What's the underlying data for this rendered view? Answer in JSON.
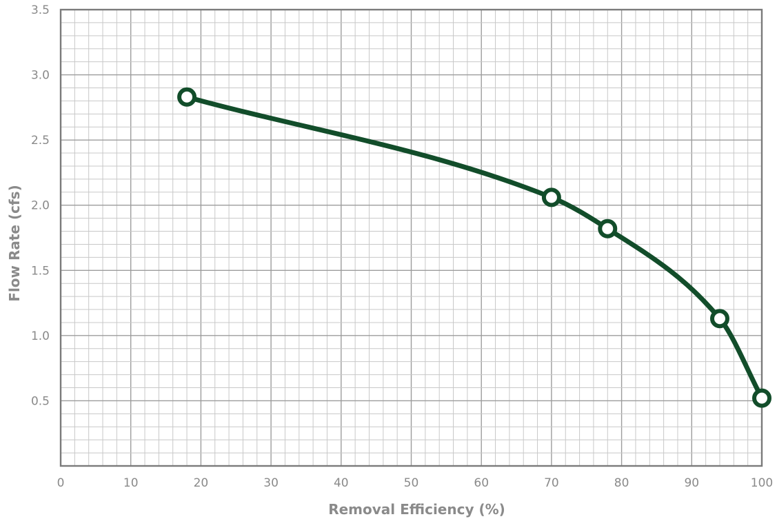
{
  "chart_data": {
    "type": "line",
    "title": "",
    "xlabel": "Removal Efficiency (%)",
    "ylabel": "Flow Rate (cfs)",
    "xlim": [
      0,
      100
    ],
    "ylim": [
      0,
      3.5
    ],
    "x_ticks": [
      "0",
      "10",
      "20",
      "30",
      "40",
      "50",
      "60",
      "70",
      "80",
      "90",
      "100"
    ],
    "y_ticks": [
      "0.5",
      "1.0",
      "1.5",
      "2.0",
      "2.5",
      "3.0",
      "3.5"
    ],
    "grid": true,
    "series": [
      {
        "color": "#124d2a",
        "points": [
          {
            "x": 18,
            "y": 2.83
          },
          {
            "x": 70,
            "y": 2.06
          },
          {
            "x": 78,
            "y": 1.82
          },
          {
            "x": 94,
            "y": 1.13
          },
          {
            "x": 100,
            "y": 0.52
          }
        ]
      }
    ]
  }
}
